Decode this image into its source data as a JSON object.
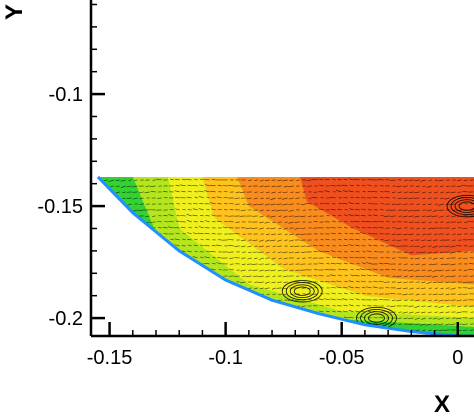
{
  "chart_data": {
    "type": "contour-vector",
    "title": "",
    "xlabel": "X",
    "ylabel": "Y",
    "xlim": [
      -0.158,
      0.007
    ],
    "ylim": [
      -0.208,
      -0.058
    ],
    "x_ticks": [
      -0.15,
      -0.1,
      -0.05,
      0
    ],
    "x_tick_labels": [
      "-0.15",
      "-0.1",
      "-0.05",
      "0"
    ],
    "y_ticks": [
      -0.1,
      -0.15,
      -0.2
    ],
    "y_tick_labels": [
      "-0.1",
      "-0.15",
      "-0.2"
    ],
    "x_minor_step": 0.01,
    "y_minor_step": 0.01,
    "domain_top_y": -0.137,
    "boundary_curve": [
      [
        -0.155,
        -0.137
      ],
      [
        -0.14,
        -0.153
      ],
      [
        -0.12,
        -0.17
      ],
      [
        -0.1,
        -0.183
      ],
      [
        -0.08,
        -0.192
      ],
      [
        -0.06,
        -0.198
      ],
      [
        -0.04,
        -0.203
      ],
      [
        -0.02,
        -0.206
      ],
      [
        0.0,
        -0.208
      ],
      [
        0.007,
        -0.208
      ]
    ],
    "colormap": [
      "#1e90ff",
      "#00d2b4",
      "#32d232",
      "#b4e61e",
      "#f0f01e",
      "#ffc31e",
      "#fa8c1e",
      "#f0501e"
    ],
    "color_regions": [
      {
        "color": "#f0501e",
        "points": [
          [
            -0.068,
            -0.137
          ],
          [
            0.007,
            -0.137
          ],
          [
            0.007,
            -0.17
          ],
          [
            -0.02,
            -0.172
          ],
          [
            -0.045,
            -0.16
          ],
          [
            -0.065,
            -0.148
          ]
        ]
      },
      {
        "color": "#fa8c1e",
        "points": [
          [
            -0.095,
            -0.137
          ],
          [
            -0.068,
            -0.137
          ],
          [
            -0.065,
            -0.148
          ],
          [
            -0.045,
            -0.16
          ],
          [
            -0.02,
            -0.172
          ],
          [
            0.007,
            -0.17
          ],
          [
            0.007,
            -0.185
          ],
          [
            -0.03,
            -0.182
          ],
          [
            -0.06,
            -0.17
          ],
          [
            -0.09,
            -0.15
          ]
        ]
      },
      {
        "color": "#ffc31e",
        "points": [
          [
            -0.11,
            -0.137
          ],
          [
            -0.095,
            -0.137
          ],
          [
            -0.09,
            -0.15
          ],
          [
            -0.06,
            -0.17
          ],
          [
            -0.03,
            -0.182
          ],
          [
            0.007,
            -0.185
          ],
          [
            0.007,
            -0.195
          ],
          [
            -0.04,
            -0.19
          ],
          [
            -0.075,
            -0.178
          ],
          [
            -0.105,
            -0.155
          ]
        ]
      },
      {
        "color": "#f0f01e",
        "points": [
          [
            -0.125,
            -0.137
          ],
          [
            -0.11,
            -0.137
          ],
          [
            -0.105,
            -0.155
          ],
          [
            -0.075,
            -0.178
          ],
          [
            -0.04,
            -0.19
          ],
          [
            0.007,
            -0.195
          ],
          [
            0.007,
            -0.2
          ],
          [
            -0.05,
            -0.197
          ],
          [
            -0.09,
            -0.185
          ],
          [
            -0.12,
            -0.16
          ]
        ]
      },
      {
        "color": "#b4e61e",
        "points": [
          [
            -0.14,
            -0.137
          ],
          [
            -0.125,
            -0.137
          ],
          [
            -0.12,
            -0.16
          ],
          [
            -0.09,
            -0.185
          ],
          [
            -0.05,
            -0.197
          ],
          [
            0.007,
            -0.2
          ],
          [
            0.007,
            -0.204
          ],
          [
            -0.06,
            -0.2
          ],
          [
            -0.1,
            -0.185
          ],
          [
            -0.13,
            -0.162
          ]
        ]
      },
      {
        "color": "#32d232",
        "points": [
          [
            -0.151,
            -0.137
          ],
          [
            -0.14,
            -0.137
          ],
          [
            -0.13,
            -0.162
          ],
          [
            -0.1,
            -0.185
          ],
          [
            -0.06,
            -0.2
          ],
          [
            0.007,
            -0.204
          ],
          [
            0.007,
            -0.206
          ],
          [
            -0.06,
            -0.202
          ],
          [
            -0.11,
            -0.184
          ],
          [
            -0.142,
            -0.158
          ]
        ]
      }
    ],
    "vortices": [
      [
        -0.067,
        -0.188
      ],
      [
        -0.035,
        -0.2
      ],
      [
        0.004,
        -0.15
      ]
    ],
    "vector_field": "dense black velocity arrows across the domain"
  }
}
